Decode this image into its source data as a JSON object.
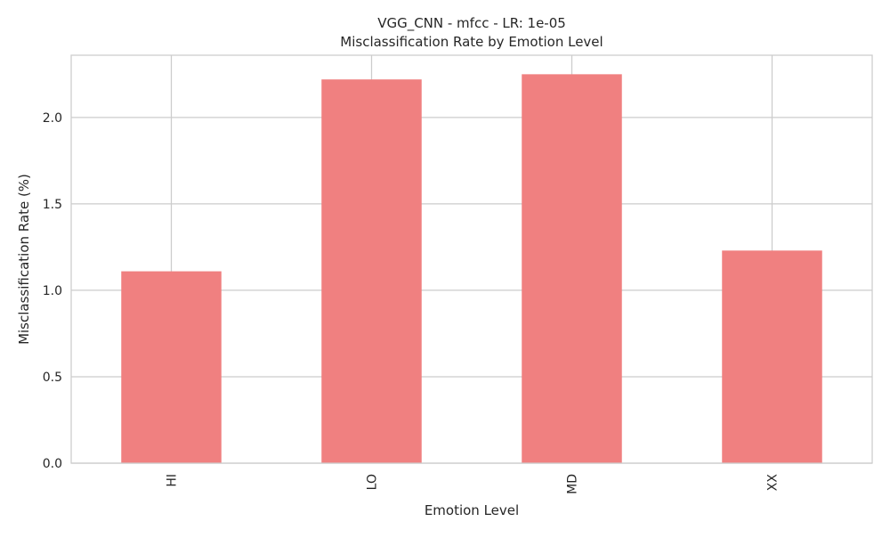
{
  "chart_data": {
    "type": "bar",
    "title": "VGG_CNN - mfcc - LR: 1e-05",
    "subtitle": "Misclassification Rate by Emotion Level",
    "xlabel": "Emotion Level",
    "ylabel": "Misclassification Rate (%)",
    "categories": [
      "HI",
      "LO",
      "MD",
      "XX"
    ],
    "values": [
      1.11,
      2.22,
      2.25,
      1.23
    ],
    "ylim": [
      0,
      2.36
    ],
    "yticks": [
      0.0,
      0.5,
      1.0,
      1.5,
      2.0
    ],
    "ytick_labels": [
      "0.0",
      "0.5",
      "1.0",
      "1.5",
      "2.0"
    ],
    "grid": true,
    "legend": "none",
    "colors": {
      "bar": "#f08080",
      "grid": "#cccccc",
      "axis": "#cccccc",
      "text": "#262626"
    }
  }
}
